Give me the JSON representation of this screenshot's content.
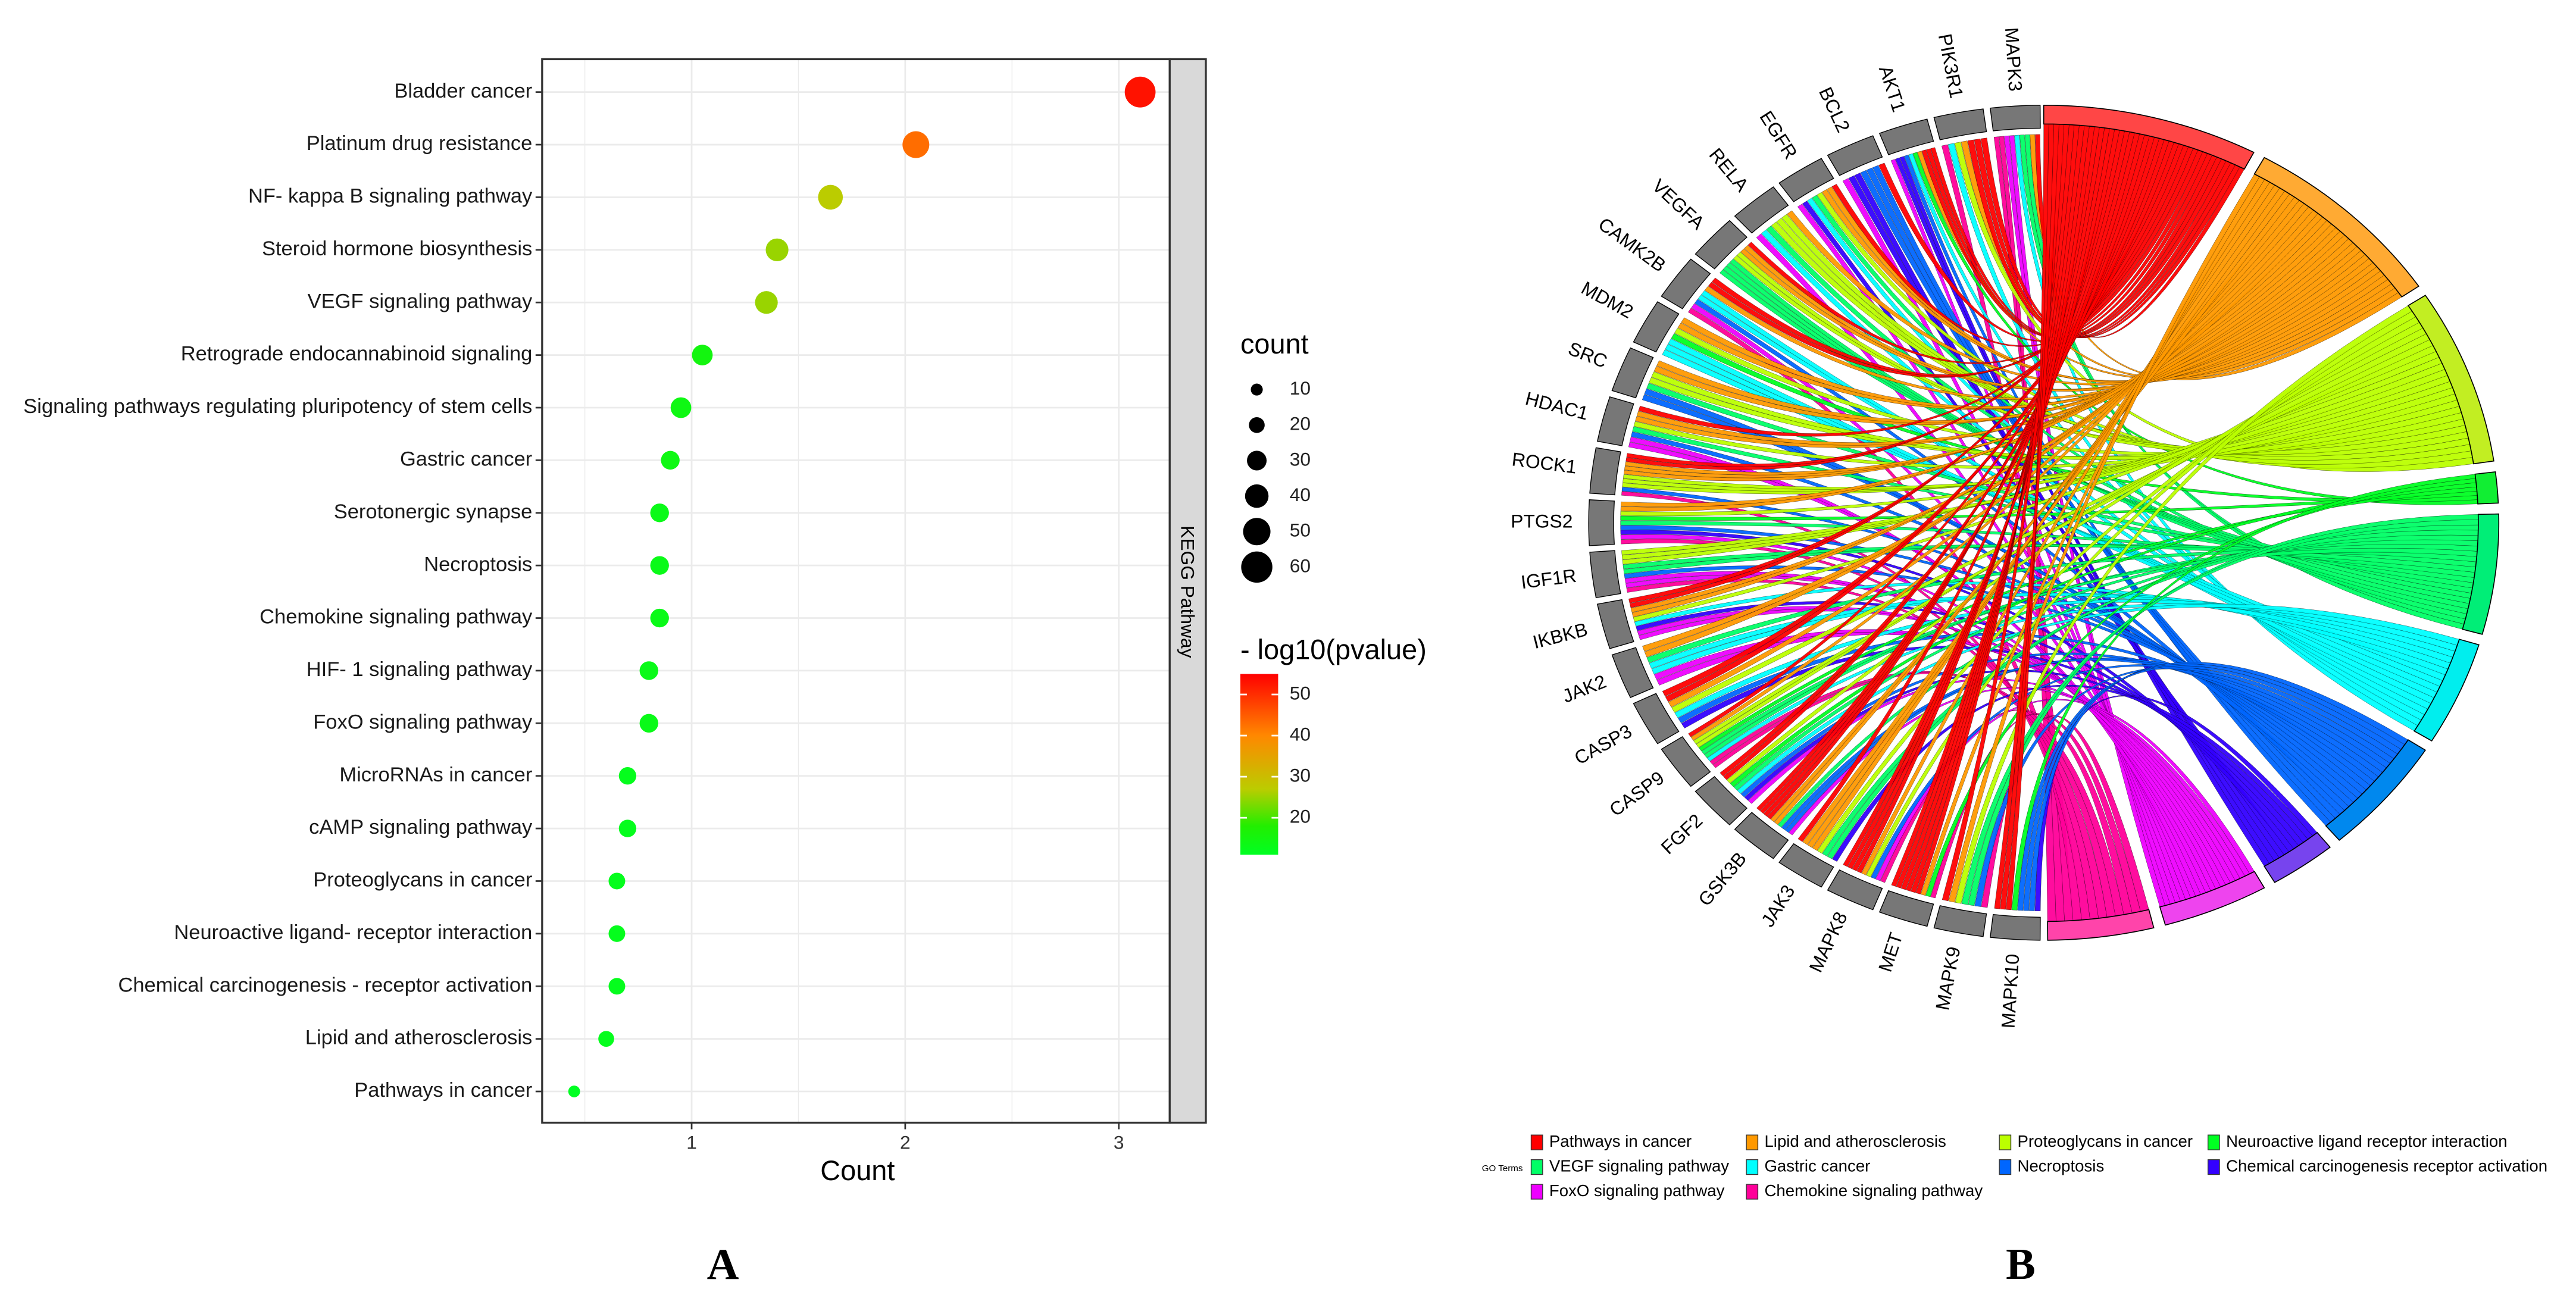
{
  "chart_data": [
    {
      "type": "scatter",
      "panel_label": "A",
      "xlabel": "Count",
      "ylabel": "",
      "xlim": [
        0.3,
        3.25
      ],
      "xticks": [
        "1",
        "2",
        "3"
      ],
      "xtick_values": [
        1,
        2,
        3
      ],
      "grid": true,
      "facet_label": "KEGG Pathway",
      "legend_size_title": "count",
      "legend_size_values": [
        10,
        20,
        30,
        40,
        50,
        60
      ],
      "legend_size_labels": [
        "10",
        "20",
        "30",
        "40",
        "50",
        "60"
      ],
      "legend_color_title": "- log10(pvalue)",
      "legend_color_ticks": [
        20,
        30,
        40,
        50
      ],
      "legend_color_labels": [
        "20",
        "30",
        "40",
        "50"
      ],
      "color_range": [
        11,
        55
      ],
      "color_stops": [
        [
          11,
          "#00ff22"
        ],
        [
          18,
          "#22ee00"
        ],
        [
          27,
          "#bbcc00"
        ],
        [
          40,
          "#ff8800"
        ],
        [
          55,
          "#ff0000"
        ]
      ],
      "legend_placement": "right",
      "points": [
        {
          "term": "Bladder cancer",
          "x": 3.1,
          "count": 55,
          "neglog10p": 53
        },
        {
          "term": "Platinum drug resistance",
          "x": 2.05,
          "count": 45,
          "neglog10p": 43
        },
        {
          "term": "NF- kappa B signaling pathway",
          "x": 1.65,
          "count": 40,
          "neglog10p": 27
        },
        {
          "term": "Steroid hormone biosynthesis",
          "x": 1.4,
          "count": 35,
          "neglog10p": 25
        },
        {
          "term": "VEGF signaling pathway",
          "x": 1.35,
          "count": 35,
          "neglog10p": 25
        },
        {
          "term": "Retrograde endocannabinoid signaling",
          "x": 1.05,
          "count": 30,
          "neglog10p": 15
        },
        {
          "term": "Signaling pathways regulating pluripotency of stem cells",
          "x": 0.95,
          "count": 30,
          "neglog10p": 14
        },
        {
          "term": "Gastric cancer",
          "x": 0.9,
          "count": 25,
          "neglog10p": 14
        },
        {
          "term": "Serotonergic synapse",
          "x": 0.85,
          "count": 25,
          "neglog10p": 13
        },
        {
          "term": "Necroptosis",
          "x": 0.85,
          "count": 25,
          "neglog10p": 13
        },
        {
          "term": "Chemokine signaling pathway",
          "x": 0.85,
          "count": 25,
          "neglog10p": 13
        },
        {
          "term": "HIF- 1 signaling pathway",
          "x": 0.8,
          "count": 25,
          "neglog10p": 13
        },
        {
          "term": "FoxO signaling pathway",
          "x": 0.8,
          "count": 25,
          "neglog10p": 13
        },
        {
          "term": "MicroRNAs in cancer",
          "x": 0.7,
          "count": 22,
          "neglog10p": 12
        },
        {
          "term": "cAMP signaling pathway",
          "x": 0.7,
          "count": 22,
          "neglog10p": 12
        },
        {
          "term": "Proteoglycans in cancer",
          "x": 0.65,
          "count": 20,
          "neglog10p": 12
        },
        {
          "term": "Neuroactive ligand- receptor interaction",
          "x": 0.65,
          "count": 20,
          "neglog10p": 12
        },
        {
          "term": "Chemical carcinogenesis -  receptor activation",
          "x": 0.65,
          "count": 20,
          "neglog10p": 12
        },
        {
          "term": "Lipid and atherosclerosis",
          "x": 0.6,
          "count": 18,
          "neglog10p": 12
        },
        {
          "term": "Pathways in cancer",
          "x": 0.45,
          "count": 8,
          "neglog10p": 11
        }
      ]
    },
    {
      "type": "chord",
      "panel_label": "B",
      "legend_title": "GO Terms",
      "genes": [
        "MAPK3",
        "PIK3R1",
        "AKT1",
        "BCL2",
        "EGFR",
        "RELA",
        "VEGFA",
        "CAMK2B",
        "MDM2",
        "SRC",
        "HDAC1",
        "ROCK1",
        "PTGS2",
        "IGF1R",
        "IKBKB",
        "JAK2",
        "CASP3",
        "CASP9",
        "FGF2",
        "GSK3B",
        "JAK3",
        "MAPK8",
        "MET",
        "MAPK9",
        "MAPK10"
      ],
      "gene_color": "#777777",
      "terms": [
        {
          "name": "Pathways in cancer",
          "color": "#ff0000",
          "block": "#ff4646"
        },
        {
          "name": "Lipid and atherosclerosis",
          "color": "#ff9900",
          "block": "#ffaa33"
        },
        {
          "name": "Proteoglycans in cancer",
          "color": "#bbff00",
          "block": "#c2ee22"
        },
        {
          "name": "Neuroactive ligand receptor interaction",
          "color": "#00ff22",
          "block": "#11ee33"
        },
        {
          "name": "VEGF signaling pathway",
          "color": "#00ff66",
          "block": "#00ee77"
        },
        {
          "name": "Gastric cancer",
          "color": "#00ffff",
          "block": "#00eeee"
        },
        {
          "name": "Necroptosis",
          "color": "#0066ff",
          "block": "#0088ee"
        },
        {
          "name": "Chemical carcinogenesis receptor activation",
          "color": "#3300ff",
          "block": "#7744ee"
        },
        {
          "name": "FoxO signaling pathway",
          "color": "#ee00ff",
          "block": "#ee44ee"
        },
        {
          "name": "Chemokine signaling pathway",
          "color": "#ff0099",
          "block": "#ff44aa"
        }
      ]
    }
  ]
}
